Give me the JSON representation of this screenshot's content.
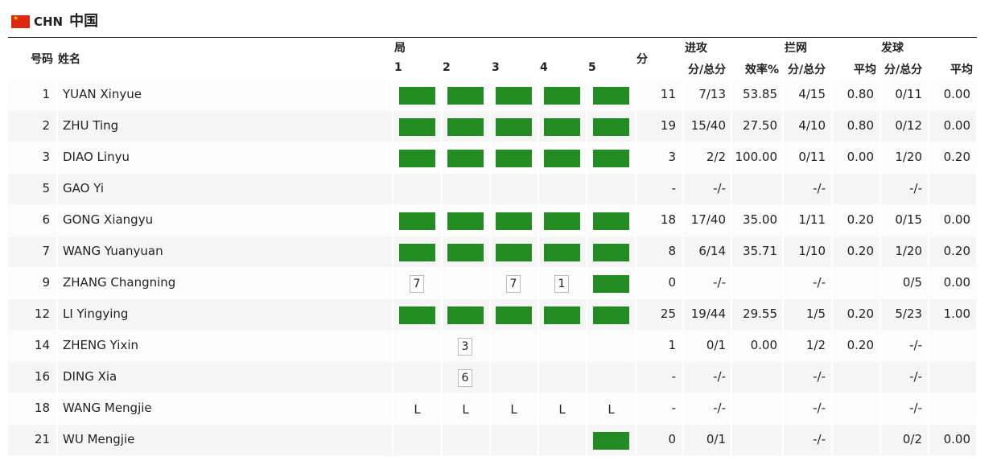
{
  "team": {
    "code": "CHN",
    "name": "中国"
  },
  "headers": {
    "number": "号码",
    "name": "姓名",
    "sets": "局",
    "set_numbers": [
      "1",
      "2",
      "3",
      "4",
      "5"
    ],
    "points": "分",
    "attack": "进攻",
    "attack_pts": "分/总分",
    "attack_eff": "效率%",
    "block": "拦网",
    "block_pts": "分/总分",
    "block_avg": "平均",
    "serve": "发球",
    "serve_pts": "分/总分",
    "serve_avg": "平均"
  },
  "colors": {
    "played_set": "#228b22",
    "row_shade": "#f5f5f5"
  },
  "players": [
    {
      "number": "1",
      "name": "YUAN Xinyue",
      "sets": [
        "P",
        "P",
        "P",
        "P",
        "P"
      ],
      "points": "11",
      "attack_pts": "7/13",
      "attack_eff": "53.85",
      "block_pts": "4/15",
      "block_avg": "0.80",
      "serve_pts": "0/11",
      "serve_avg": "0.00"
    },
    {
      "number": "2",
      "name": "ZHU Ting",
      "sets": [
        "P",
        "P",
        "P",
        "P",
        "P"
      ],
      "points": "19",
      "attack_pts": "15/40",
      "attack_eff": "27.50",
      "block_pts": "4/10",
      "block_avg": "0.80",
      "serve_pts": "0/12",
      "serve_avg": "0.00"
    },
    {
      "number": "3",
      "name": "DIAO Linyu",
      "sets": [
        "P",
        "P",
        "P",
        "P",
        "P"
      ],
      "points": "3",
      "attack_pts": "2/2",
      "attack_eff": "100.00",
      "block_pts": "0/11",
      "block_avg": "0.00",
      "serve_pts": "1/20",
      "serve_avg": "0.20"
    },
    {
      "number": "5",
      "name": "GAO Yi",
      "sets": [
        "",
        "",
        "",
        "",
        ""
      ],
      "points": "-",
      "attack_pts": "-/-",
      "attack_eff": "",
      "block_pts": "-/-",
      "block_avg": "",
      "serve_pts": "-/-",
      "serve_avg": ""
    },
    {
      "number": "6",
      "name": "GONG Xiangyu",
      "sets": [
        "P",
        "P",
        "P",
        "P",
        "P"
      ],
      "points": "18",
      "attack_pts": "17/40",
      "attack_eff": "35.00",
      "block_pts": "1/11",
      "block_avg": "0.20",
      "serve_pts": "0/15",
      "serve_avg": "0.00"
    },
    {
      "number": "7",
      "name": "WANG Yuanyuan",
      "sets": [
        "P",
        "P",
        "P",
        "P",
        "P"
      ],
      "points": "8",
      "attack_pts": "6/14",
      "attack_eff": "35.71",
      "block_pts": "1/10",
      "block_avg": "0.20",
      "serve_pts": "1/20",
      "serve_avg": "0.20"
    },
    {
      "number": "9",
      "name": "ZHANG Changning",
      "sets": [
        "7",
        "",
        "7",
        "1",
        "P"
      ],
      "points": "0",
      "attack_pts": "-/-",
      "attack_eff": "",
      "block_pts": "-/-",
      "block_avg": "",
      "serve_pts": "0/5",
      "serve_avg": "0.00"
    },
    {
      "number": "12",
      "name": "LI Yingying",
      "sets": [
        "P",
        "P",
        "P",
        "P",
        "P"
      ],
      "points": "25",
      "attack_pts": "19/44",
      "attack_eff": "29.55",
      "block_pts": "1/5",
      "block_avg": "0.20",
      "serve_pts": "5/23",
      "serve_avg": "1.00"
    },
    {
      "number": "14",
      "name": "ZHENG Yixin",
      "sets": [
        "",
        "3",
        "",
        "",
        ""
      ],
      "points": "1",
      "attack_pts": "0/1",
      "attack_eff": "0.00",
      "block_pts": "1/2",
      "block_avg": "0.20",
      "serve_pts": "-/-",
      "serve_avg": ""
    },
    {
      "number": "16",
      "name": "DING Xia",
      "sets": [
        "",
        "6",
        "",
        "",
        ""
      ],
      "points": "-",
      "attack_pts": "-/-",
      "attack_eff": "",
      "block_pts": "-/-",
      "block_avg": "",
      "serve_pts": "-/-",
      "serve_avg": ""
    },
    {
      "number": "18",
      "name": "WANG Mengjie",
      "sets": [
        "L",
        "L",
        "L",
        "L",
        "L"
      ],
      "points": "-",
      "attack_pts": "-/-",
      "attack_eff": "",
      "block_pts": "-/-",
      "block_avg": "",
      "serve_pts": "-/-",
      "serve_avg": ""
    },
    {
      "number": "21",
      "name": "WU Mengjie",
      "sets": [
        "",
        "",
        "",
        "",
        "P"
      ],
      "points": "0",
      "attack_pts": "0/1",
      "attack_eff": "",
      "block_pts": "-/-",
      "block_avg": "",
      "serve_pts": "0/2",
      "serve_avg": "0.00"
    }
  ]
}
